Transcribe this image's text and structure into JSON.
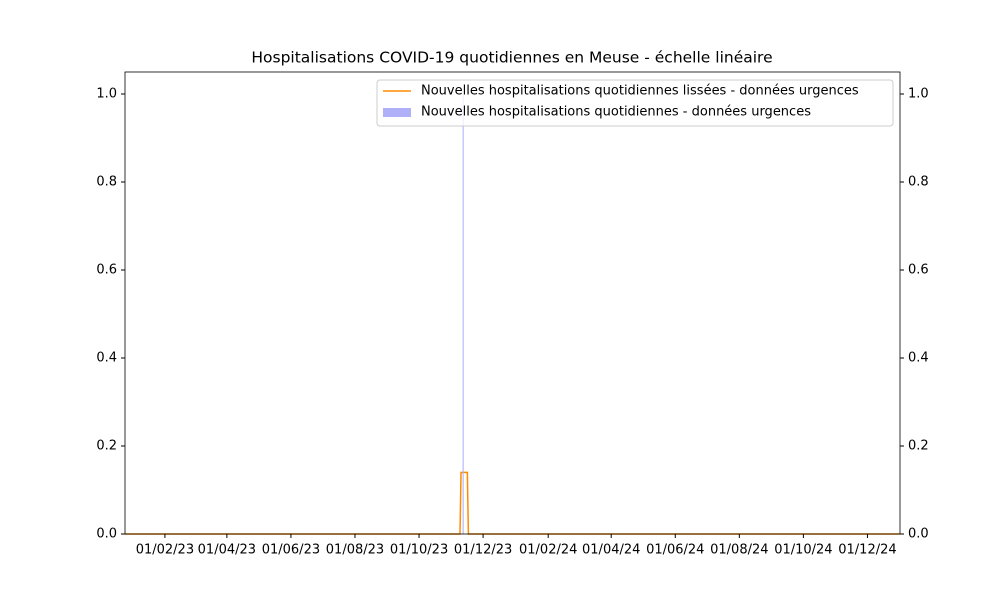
{
  "chart_data": {
    "type": "line",
    "title": "Hospitalisations COVID-19 quotidiennes en Meuse - échelle linéaire",
    "xlim": [
      "25/12/22",
      "01/01/25"
    ],
    "xticks": [
      "01/02/23",
      "01/04/23",
      "01/06/23",
      "01/08/23",
      "01/10/23",
      "01/12/23",
      "01/02/24",
      "01/04/24",
      "01/06/24",
      "01/08/24",
      "01/10/24",
      "01/12/24"
    ],
    "ylim": [
      0,
      1.05
    ],
    "yticks": [
      {
        "value": 0,
        "label": "0.0"
      },
      {
        "value": 0.2,
        "label": "0.2"
      },
      {
        "value": 0.4,
        "label": "0.4"
      },
      {
        "value": 0.6,
        "label": "0.6"
      },
      {
        "value": 0.8,
        "label": "0.8"
      },
      {
        "value": 1,
        "label": "1.0"
      }
    ],
    "y2lim": [
      0,
      1.05
    ],
    "y2ticks": [
      {
        "value": 0,
        "label": "0.0"
      },
      {
        "value": 0.2,
        "label": "0.2"
      },
      {
        "value": 0.4,
        "label": "0.4"
      },
      {
        "value": 0.6,
        "label": "0.6"
      },
      {
        "value": 0.8,
        "label": "0.8"
      },
      {
        "value": 1,
        "label": "1.0"
      }
    ],
    "legend": "upper right",
    "series": [
      {
        "name": "Nouvelles hospitalisations quotidiennes lissées - données urgences",
        "color": "#ff8c00",
        "type": "line",
        "x": [
          "25/12/22",
          "09/11/23",
          "10/11/23",
          "16/11/23",
          "17/11/23",
          "01/01/25"
        ],
        "values": [
          0,
          0,
          0.14,
          0.14,
          0,
          0
        ]
      },
      {
        "name": "Nouvelles hospitalisations quotidiennes - données urgences",
        "color": "#b0b0f8",
        "type": "bar",
        "x": [
          "12/11/23"
        ],
        "values": [
          1
        ]
      }
    ]
  }
}
